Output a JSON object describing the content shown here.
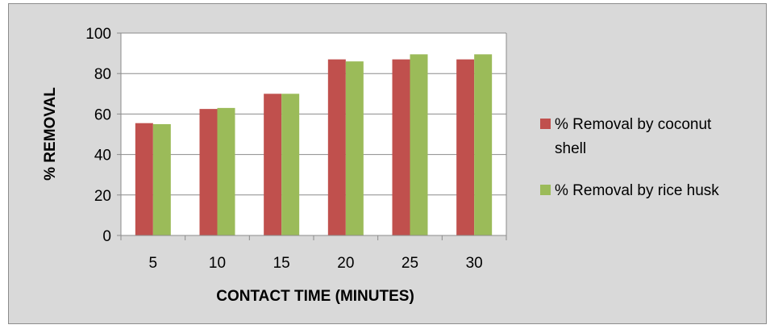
{
  "chart_data": {
    "type": "bar",
    "categories": [
      "5",
      "10",
      "15",
      "20",
      "25",
      "30"
    ],
    "series": [
      {
        "name": "% Removal by coconut shell",
        "values": [
          55.5,
          62.5,
          70,
          87,
          87,
          87
        ],
        "color": "#c0504d"
      },
      {
        "name": "% Removal by rice husk",
        "values": [
          55,
          63,
          70,
          86,
          89.5,
          89.5
        ],
        "color": "#9bbb59"
      }
    ],
    "xlabel": "CONTACT TIME (MINUTES)",
    "ylabel": "% REMOVAL",
    "ylim": [
      0,
      100
    ],
    "yticks": [
      0,
      20,
      40,
      60,
      80,
      100
    ],
    "grid": true,
    "legend_position": "right",
    "background": "#d9d9d9",
    "plot_background": "#ffffff"
  }
}
